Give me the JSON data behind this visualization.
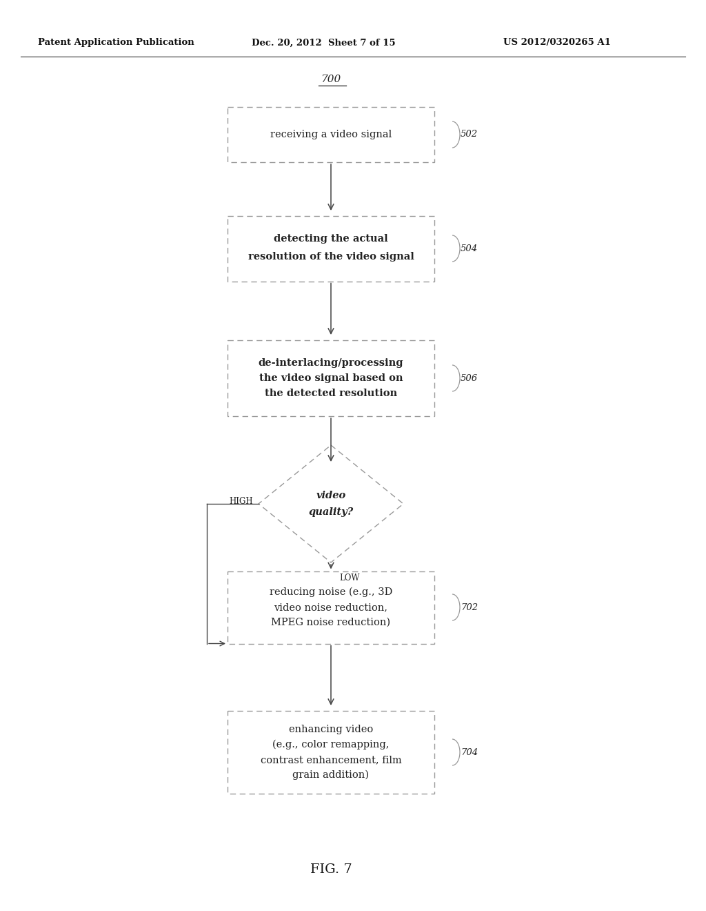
{
  "header_left": "Patent Application Publication",
  "header_mid": "Dec. 20, 2012  Sheet 7 of 15",
  "header_right": "US 2012/0320265 A1",
  "fig_label": "FIG. 7",
  "diagram_label": "700",
  "bg_color": "#ffffff",
  "box_edge_color": "#999999",
  "arrow_color": "#444444",
  "text_color": "#222222",
  "header_line_color": "#333333",
  "low_label": "LOW",
  "high_label": "HIGH",
  "ref_502": "502",
  "ref_504": "504",
  "ref_506": "506",
  "ref_702": "702",
  "ref_704": "704",
  "box_502_lines": [
    "receiving a video signal"
  ],
  "box_504_lines": [
    "detecting the actual",
    "resolution of the video signal"
  ],
  "box_506_lines": [
    "de-interlacing/processing",
    "the video signal based on",
    "the detected resolution"
  ],
  "diamond_lines": [
    "video",
    "quality?"
  ],
  "box_702_lines": [
    "reducing noise (e.g., 3D",
    "video noise reduction,",
    "MPEG noise reduction)"
  ],
  "box_704_lines": [
    "enhancing video",
    "(e.g., color remapping,",
    "contrast enhancement, film",
    "grain addition)"
  ]
}
